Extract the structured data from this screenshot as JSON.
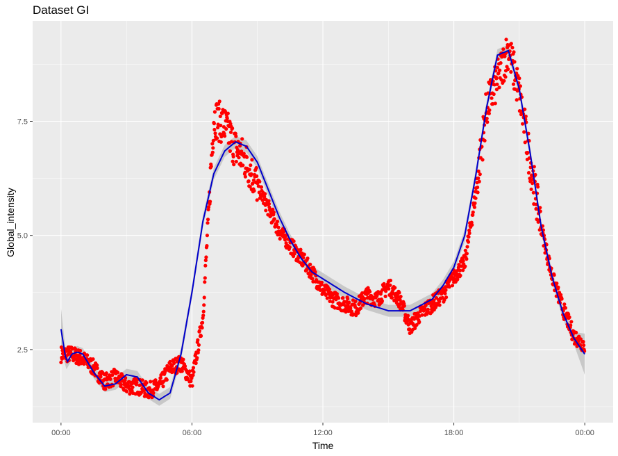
{
  "chart_data": {
    "type": "scatter",
    "title": "Dataset GI",
    "xlabel": "Time",
    "ylabel": "Global_intensity",
    "x_ticks": [
      "00:00",
      "06:00",
      "12:00",
      "18:00",
      "00:00"
    ],
    "y_ticks": [
      "2.5",
      "5.0",
      "7.5"
    ],
    "xlim_hours": [
      -1.3,
      25.3
    ],
    "ylim": [
      0.9,
      9.7
    ],
    "grid": true,
    "background": "#ebebeb",
    "colors": {
      "points": "#ff0000",
      "smooth_line": "#0000cc",
      "ribbon": "#c4c4c4"
    },
    "series": [
      {
        "kind": "points",
        "x_hours": [
          0.0,
          0.5,
          1.0,
          1.5,
          2.0,
          2.5,
          3.0,
          3.5,
          4.0,
          4.5,
          5.0,
          5.5,
          6.0,
          6.5,
          7.0,
          7.5,
          8.0,
          8.5,
          9.0,
          9.5,
          10.0,
          10.5,
          11.0,
          11.5,
          12.0,
          12.5,
          13.0,
          13.5,
          14.0,
          14.5,
          15.0,
          15.5,
          16.0,
          16.5,
          17.0,
          17.5,
          18.0,
          18.5,
          19.0,
          19.5,
          20.0,
          20.5,
          21.0,
          21.5,
          22.0,
          22.5,
          23.0,
          23.5,
          24.0
        ],
        "y": [
          2.4,
          2.4,
          2.3,
          2.1,
          1.8,
          1.9,
          1.7,
          1.7,
          1.6,
          1.7,
          2.1,
          2.2,
          1.8,
          3.2,
          7.6,
          7.4,
          6.9,
          6.6,
          6.1,
          5.6,
          5.1,
          4.8,
          4.5,
          4.2,
          3.8,
          3.6,
          3.5,
          3.4,
          3.7,
          3.6,
          3.9,
          3.6,
          3.0,
          3.3,
          3.5,
          3.7,
          4.1,
          4.4,
          5.9,
          7.8,
          8.4,
          9.1,
          8.1,
          6.6,
          5.2,
          4.1,
          3.4,
          2.8,
          2.6
        ]
      },
      {
        "kind": "smooth",
        "x_hours": [
          0.0,
          0.25,
          0.5,
          0.75,
          1.0,
          1.5,
          2.0,
          2.5,
          3.0,
          3.5,
          4.0,
          4.5,
          5.0,
          5.5,
          6.0,
          6.5,
          7.0,
          7.5,
          8.0,
          8.5,
          9.0,
          9.5,
          10.0,
          10.5,
          11.0,
          11.5,
          12.0,
          13.0,
          14.0,
          15.0,
          16.0,
          17.0,
          17.5,
          18.0,
          18.5,
          19.0,
          19.5,
          20.0,
          20.5,
          21.0,
          21.5,
          22.0,
          22.5,
          23.0,
          23.5,
          24.0
        ],
        "y": [
          2.95,
          2.2,
          2.4,
          2.45,
          2.4,
          2.0,
          1.7,
          1.75,
          1.95,
          1.9,
          1.55,
          1.4,
          1.55,
          2.4,
          3.75,
          5.3,
          6.35,
          6.85,
          7.05,
          6.95,
          6.6,
          6.0,
          5.4,
          4.9,
          4.5,
          4.2,
          4.05,
          3.75,
          3.5,
          3.35,
          3.35,
          3.6,
          3.9,
          4.3,
          5.0,
          6.3,
          7.8,
          8.95,
          9.05,
          8.2,
          6.8,
          5.2,
          4.1,
          3.3,
          2.75,
          2.4
        ]
      }
    ]
  }
}
